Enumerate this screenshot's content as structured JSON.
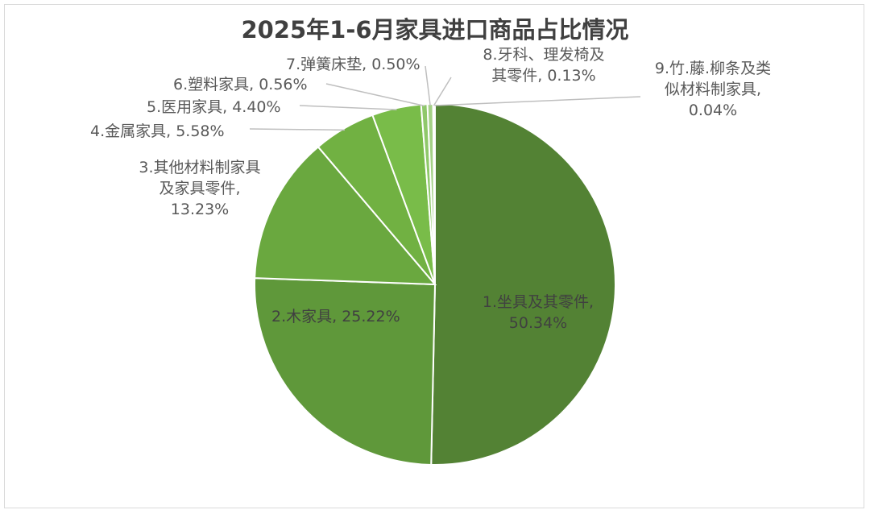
{
  "chart_data": {
    "type": "pie",
    "title": "2025年1-6月家具进口商品占比情况",
    "slices": [
      {
        "label": "1.坐具及其零件",
        "value": 50.34,
        "value_text": "50.34%",
        "color": "#538234"
      },
      {
        "label": "2.木家具",
        "value": 25.22,
        "value_text": "25.22%",
        "color": "#5f983a"
      },
      {
        "label": "3.其他材料制家具及家具零件",
        "value": 13.23,
        "value_text": "13.23%",
        "color": "#6aa83f"
      },
      {
        "label": "4.金属家具",
        "value": 5.58,
        "value_text": "5.58%",
        "color": "#71b142"
      },
      {
        "label": "5.医用家具",
        "value": 4.4,
        "value_text": "4.40%",
        "color": "#79bc49"
      },
      {
        "label": "6.塑料家具",
        "value": 0.56,
        "value_text": "0.56%",
        "color": "#8fc86a"
      },
      {
        "label": "7.弹簧床垫",
        "value": 0.5,
        "value_text": "0.50%",
        "color": "#a4d186"
      },
      {
        "label": "8.牙科、理发椅及其零件",
        "value": 0.13,
        "value_text": "0.13%",
        "color": "#b7dba0"
      },
      {
        "label": "9.竹.藤.柳条及类似材料制家具",
        "value": 0.04,
        "value_text": "0.04%",
        "color": "#c8e4b6"
      }
    ]
  },
  "labels": {
    "s1": {
      "l1": "1.坐具及其零件,",
      "l2": "50.34%"
    },
    "s2": {
      "l1": "2.木家具, 25.22%"
    },
    "s3": {
      "l1": "3.其他材料制家具",
      "l2": "及家具零件,",
      "l3": "13.23%"
    },
    "s4": {
      "l1": "4.金属家具, 5.58%"
    },
    "s5": {
      "l1": "5.医用家具, 4.40%"
    },
    "s6": {
      "l1": "6.塑料家具, 0.56%"
    },
    "s7": {
      "l1": "7.弹簧床垫, 0.50%"
    },
    "s8": {
      "l1": "8.牙科、理发椅及",
      "l2": "其零件, 0.13%"
    },
    "s9": {
      "l1": "9.竹.藤.柳条及类",
      "l2": "似材料制家具,",
      "l3": "0.04%"
    }
  }
}
